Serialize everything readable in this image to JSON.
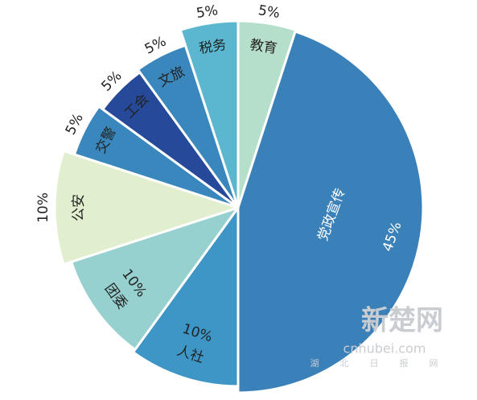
{
  "chart_data": {
    "type": "pie",
    "categories": [
      "教育",
      "党政宣传",
      "人社",
      "团委",
      "公安",
      "交警",
      "工会",
      "文旅",
      "税务"
    ],
    "values": [
      5,
      45,
      10,
      10,
      10,
      5,
      5,
      5,
      5
    ],
    "value_labels": [
      "5%",
      "45%",
      "10%",
      "10%",
      "10%",
      "5%",
      "5%",
      "5%",
      "5%"
    ],
    "colors": [
      "#b5dfcb",
      "#3a80b9",
      "#3d96c6",
      "#96d0cf",
      "#e2efcf",
      "#3a87bd",
      "#27499a",
      "#3a87bd",
      "#5bb7cf"
    ],
    "watermark": {
      "logo": "新楚网",
      "url": "cnhubei.com",
      "name": "湖北日报网"
    }
  }
}
